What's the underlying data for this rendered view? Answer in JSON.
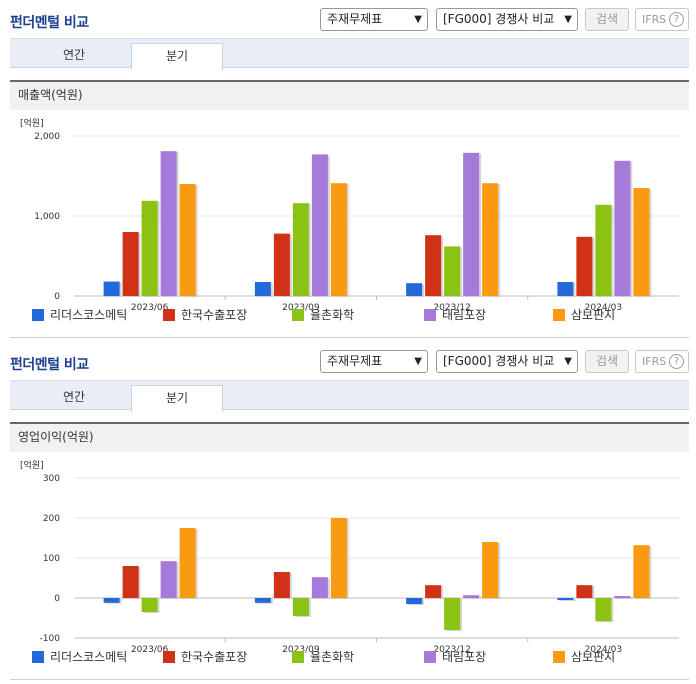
{
  "controls": {
    "title": "펀더멘털 비교",
    "statement_select": "주재무제표",
    "compare_select": "[FG000] 경쟁사 비교",
    "search_label": "검색",
    "ifrs_label": "IFRS",
    "help_label": "?"
  },
  "tabs": [
    "연간",
    "분기"
  ],
  "active_tab": 1,
  "chart_data": [
    {
      "type": "bar",
      "title": "매출액(억원)",
      "unit_label": "[억원]",
      "categories": [
        "2023/06",
        "2023/09",
        "2023/12",
        "2024/03"
      ],
      "ylim": [
        0,
        2000
      ],
      "yticks": [
        0,
        1000,
        2000
      ],
      "ytick_labels": [
        "0",
        "1,000",
        "2,000"
      ],
      "legend_position": "bottom",
      "series": [
        {
          "name": "리더스코스메틱",
          "color": "#2469d9",
          "values": [
            180,
            175,
            160,
            175
          ]
        },
        {
          "name": "한국수출포장",
          "color": "#d03218",
          "values": [
            800,
            780,
            760,
            740
          ]
        },
        {
          "name": "율촌화학",
          "color": "#8cc214",
          "values": [
            1190,
            1160,
            620,
            1140
          ]
        },
        {
          "name": "태림포장",
          "color": "#a57ad9",
          "values": [
            1810,
            1770,
            1790,
            1690
          ]
        },
        {
          "name": "삼보판지",
          "color": "#fa9a10",
          "values": [
            1400,
            1410,
            1410,
            1350
          ]
        }
      ]
    },
    {
      "type": "bar",
      "title": "영업이익(억원)",
      "unit_label": "[억원]",
      "categories": [
        "2023/06",
        "2023/09",
        "2023/12",
        "2024/03"
      ],
      "ylim": [
        -100,
        300
      ],
      "yticks": [
        -100,
        0,
        100,
        200,
        300
      ],
      "ytick_labels": [
        "-100",
        "0",
        "100",
        "200",
        "300"
      ],
      "legend_position": "bottom",
      "series": [
        {
          "name": "리더스코스메틱",
          "color": "#2469d9",
          "values": [
            -12,
            -12,
            -15,
            -5
          ]
        },
        {
          "name": "한국수출포장",
          "color": "#d03218",
          "values": [
            80,
            65,
            32,
            32
          ]
        },
        {
          "name": "율촌화학",
          "color": "#8cc214",
          "values": [
            -35,
            -45,
            -80,
            -58
          ]
        },
        {
          "name": "태림포장",
          "color": "#a57ad9",
          "values": [
            92,
            52,
            7,
            5
          ]
        },
        {
          "name": "삼보판지",
          "color": "#fa9a10",
          "values": [
            175,
            200,
            140,
            132
          ]
        }
      ]
    }
  ]
}
